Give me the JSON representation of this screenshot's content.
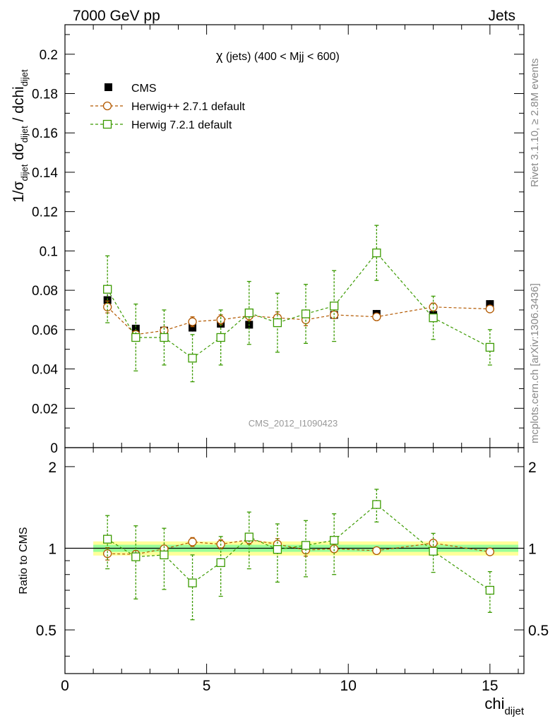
{
  "header": {
    "left": "7000 GeV pp",
    "right": "Jets"
  },
  "side_labels": {
    "rivet": "Rivet 3.1.10, ≥ 2.8M events",
    "mcplots": "mcplots.cern.ch [arXiv:1306.3436]"
  },
  "watermark": "CMS_2012_I1090423",
  "top_panel": {
    "title_prefix": "χ",
    "title_rest": " (jets) (400 < Mjj <  600)",
    "ylabel": {
      "a": "1/σ",
      "a_sub": "dijet",
      "b": " dσ",
      "b_sub": "dijet",
      "c": " / dchi",
      "c_sub": "dijet"
    },
    "yticks": [
      "0",
      "0.02",
      "0.04",
      "0.06",
      "0.08",
      "0.1",
      "0.12",
      "0.14",
      "0.16",
      "0.18",
      "0.2"
    ]
  },
  "ratio_panel": {
    "ylabel": "Ratio to CMS",
    "yticks": [
      "0.5",
      "1",
      "2"
    ]
  },
  "xaxis": {
    "label": "chi",
    "label_sub": "dijet",
    "ticks": [
      "0",
      "5",
      "10",
      "15"
    ]
  },
  "legend": [
    {
      "label": "CMS",
      "marker": "square-filled",
      "color": "#000000"
    },
    {
      "label": "Herwig++ 2.7.1 default",
      "marker": "circle-open",
      "color": "#b35900"
    },
    {
      "label": "Herwig 7.2.1 default",
      "marker": "square-open",
      "color": "#3b9a00"
    }
  ],
  "chart_data": [
    {
      "type": "scatter",
      "title": "χ (jets) (400 < Mjj <  600)",
      "xlabel": "chi_dijet",
      "ylabel": "1/σ_dijet dσ_dijet / dchi_dijet",
      "xlim": [
        0,
        16.2
      ],
      "ylim": [
        0,
        0.215
      ],
      "x": [
        1.5,
        2.5,
        3.5,
        4.5,
        5.5,
        6.5,
        7.5,
        8.5,
        9.5,
        11,
        13,
        15
      ],
      "series": [
        {
          "name": "CMS",
          "color": "#000000",
          "values": [
            0.075,
            0.0605,
            0.0595,
            0.061,
            0.063,
            0.0625,
            0.064,
            0.066,
            0.0675,
            0.068,
            0.0675,
            0.073
          ],
          "err": [
            0.003,
            0.002,
            0.002,
            0.002,
            0.002,
            0.002,
            0.002,
            0.002,
            0.002,
            0.002,
            0.002,
            0.002
          ]
        },
        {
          "name": "Herwig++ 2.7.1 default",
          "color": "#b35900",
          "values": [
            0.0715,
            0.0575,
            0.0595,
            0.064,
            0.065,
            0.067,
            0.066,
            0.065,
            0.0675,
            0.0665,
            0.0715,
            0.0705
          ],
          "err": [
            0.003,
            0.0015,
            0.0015,
            0.0025,
            0.0025,
            0.0025,
            0.003,
            0.003,
            0.0015,
            0.0015,
            0.002,
            0.0015
          ]
        },
        {
          "name": "Herwig 7.2.1 default",
          "color": "#3b9a00",
          "values": [
            0.0805,
            0.056,
            0.056,
            0.0455,
            0.056,
            0.0685,
            0.0635,
            0.068,
            0.072,
            0.099,
            0.066,
            0.051
          ],
          "err": [
            0.017,
            0.017,
            0.014,
            0.012,
            0.014,
            0.016,
            0.015,
            0.015,
            0.018,
            0.014,
            0.011,
            0.009
          ]
        }
      ]
    },
    {
      "type": "scatter",
      "xlabel": "chi_dijet",
      "ylabel": "Ratio to CMS",
      "yscale": "log",
      "xlim": [
        0,
        16.2
      ],
      "ylim": [
        0.345,
        2.35
      ],
      "band": {
        "inner": 0.03,
        "outer": 0.06
      },
      "x": [
        1.5,
        2.5,
        3.5,
        4.5,
        5.5,
        6.5,
        7.5,
        8.5,
        9.5,
        11,
        13,
        15
      ],
      "series": [
        {
          "name": "Herwig++ 2.7.1 default",
          "color": "#b35900",
          "values": [
            0.955,
            0.95,
            0.995,
            1.055,
            1.035,
            1.075,
            1.035,
            0.985,
            0.995,
            0.98,
            1.045,
            0.97
          ],
          "err": [
            0.05,
            0.03,
            0.03,
            0.04,
            0.04,
            0.04,
            0.05,
            0.05,
            0.02,
            0.02,
            0.03,
            0.02
          ]
        },
        {
          "name": "Herwig 7.2.1 default",
          "color": "#3b9a00",
          "values": [
            1.08,
            0.93,
            0.945,
            0.745,
            0.885,
            1.1,
            0.99,
            1.025,
            1.07,
            1.45,
            0.975,
            0.7
          ],
          "err": [
            0.24,
            0.28,
            0.24,
            0.2,
            0.22,
            0.26,
            0.24,
            0.24,
            0.27,
            0.2,
            0.16,
            0.12
          ]
        }
      ]
    }
  ]
}
